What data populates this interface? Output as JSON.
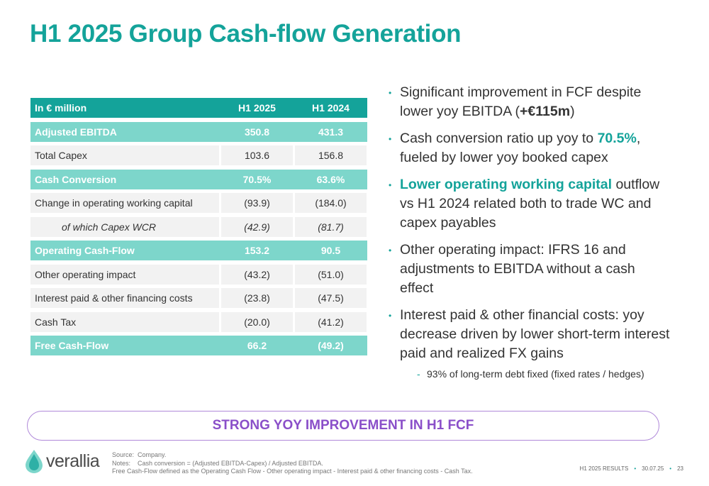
{
  "title": "H1 2025 Group Cash-flow Generation",
  "table": {
    "header": [
      "In € million",
      "H1 2025",
      "H1 2024"
    ],
    "rows": [
      {
        "label": "Adjusted EBITDA",
        "h1_2025": "350.8",
        "h1_2024": "431.3",
        "style": "hl"
      },
      {
        "label": "Total Capex",
        "h1_2025": "103.6",
        "h1_2024": "156.8",
        "style": "norm"
      },
      {
        "label": "Cash Conversion",
        "h1_2025": "70.5%",
        "h1_2024": "63.6%",
        "style": "hl"
      },
      {
        "label": "Change in operating working capital",
        "h1_2025": "(93.9)",
        "h1_2024": "(184.0)",
        "style": "norm"
      },
      {
        "label": "of which Capex WCR",
        "h1_2025": "(42.9)",
        "h1_2024": "(81.7)",
        "style": "sub"
      },
      {
        "label": "Operating Cash-Flow",
        "h1_2025": "153.2",
        "h1_2024": "90.5",
        "style": "hl"
      },
      {
        "label": "Other operating impact",
        "h1_2025": "(43.2)",
        "h1_2024": "(51.0)",
        "style": "norm"
      },
      {
        "label": "Interest paid & other financing costs",
        "h1_2025": "(23.8)",
        "h1_2024": "(47.5)",
        "style": "norm"
      },
      {
        "label": "Cash Tax",
        "h1_2025": "(20.0)",
        "h1_2024": "(41.2)",
        "style": "norm"
      },
      {
        "label": "Free Cash-Flow",
        "h1_2025": "66.2",
        "h1_2024": "(49.2)",
        "style": "hl"
      }
    ]
  },
  "bullets": {
    "b1_pre": "Significant improvement in FCF despite lower yoy EBITDA (",
    "b1_bold": "+€115m",
    "b1_post": ")",
    "b2_pre": "Cash conversion ratio up yoy to ",
    "b2_teal": "70.5%",
    "b2_post": ", fueled by lower yoy booked capex",
    "b3_teal": "Lower operating working capital",
    "b3_post": " outflow vs H1 2024 related both to trade WC and capex payables",
    "b4": "Other operating impact: IFRS 16 and adjustments to EBITDA without a cash effect",
    "b5": "Interest paid & other financial costs: yoy decrease driven by lower short-term interest paid and realized FX gains",
    "sub": "93% of long-term debt fixed (fixed rates / hedges)"
  },
  "banner": "STRONG YOY IMPROVEMENT IN H1 FCF",
  "logo": "verallia",
  "notes": {
    "source_label": "Source:",
    "source": "Company.",
    "notes_label": "Notes:",
    "note1": "Cash conversion = (Adjusted EBITDA-Capex) / Adjusted EBITDA.",
    "note2": "Free Cash-Flow defined as the Operating Cash Flow - Other operating impact - Interest paid & other financing costs - Cash Tax."
  },
  "footer": {
    "event": "H1 2025 RESULTS",
    "date": "30.07.25",
    "page": "23"
  },
  "colors": {
    "teal": "#14a39a",
    "light_teal": "#7dd6cb",
    "purple": "#8a4fc9"
  }
}
